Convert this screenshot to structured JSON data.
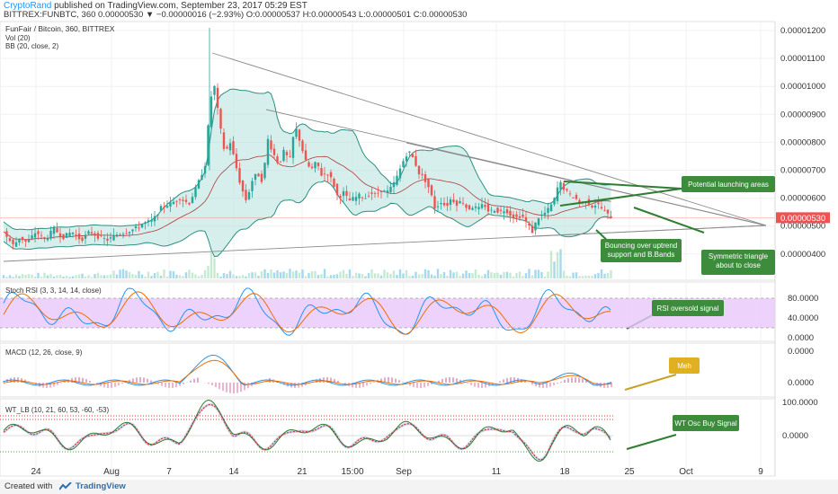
{
  "header": {
    "author": "CryptoRand",
    "published": "published on TradingView.com, September 23, 2017 05:29 EST",
    "symbol_line": "BITTREX:FUNBTC, 360  0.00000530 ▼ −0.00000016 (−2.93%)  O:0.00000537  H:0.00000543  L:0.00000501  C:0.00000530"
  },
  "chart_data": {
    "type": "candlestick",
    "title": "FunFair / Bitcoin, 360, BITTREX",
    "indicators_legend": [
      "Vol (20)",
      "BB (20, close, 2)"
    ],
    "price_axis_labels": [
      "0.00001200",
      "0.00001100",
      "0.00001000",
      "0.00000900",
      "0.00000800",
      "0.00000700",
      "0.00000600",
      "0.00000500",
      "0.00000400"
    ],
    "current_price_label": "0.00000530",
    "x_tick_labels": [
      "24",
      "Aug",
      "7",
      "14",
      "21",
      "15:00",
      "Sep",
      "11",
      "18",
      "25",
      "Oct",
      "9"
    ],
    "price_path": [
      [
        0,
        5.0
      ],
      [
        8,
        4.6
      ],
      [
        15,
        4.3
      ],
      [
        22,
        4.6
      ],
      [
        30,
        4.4
      ],
      [
        40,
        4.8
      ],
      [
        50,
        4.5
      ],
      [
        60,
        4.9
      ],
      [
        70,
        4.6
      ],
      [
        80,
        4.8
      ],
      [
        90,
        4.5
      ],
      [
        100,
        4.8
      ],
      [
        110,
        4.6
      ],
      [
        120,
        4.5
      ],
      [
        130,
        4.7
      ],
      [
        140,
        4.8
      ],
      [
        150,
        4.9
      ],
      [
        160,
        5.1
      ],
      [
        170,
        5.2
      ],
      [
        180,
        5.7
      ],
      [
        190,
        5.8
      ],
      [
        200,
        6.0
      ],
      [
        210,
        5.8
      ],
      [
        220,
        6.5
      ],
      [
        228,
        7.2
      ],
      [
        234,
        9.5
      ],
      [
        238,
        10.1
      ],
      [
        244,
        8.7
      ],
      [
        250,
        7.6
      ],
      [
        256,
        8.0
      ],
      [
        262,
        7.2
      ],
      [
        268,
        6.4
      ],
      [
        274,
        5.9
      ],
      [
        280,
        6.6
      ],
      [
        286,
        6.9
      ],
      [
        292,
        6.6
      ],
      [
        298,
        8.1
      ],
      [
        304,
        7.6
      ],
      [
        310,
        7.2
      ],
      [
        316,
        7.7
      ],
      [
        322,
        7.3
      ],
      [
        328,
        8.6
      ],
      [
        334,
        8.0
      ],
      [
        340,
        7.3
      ],
      [
        346,
        7.0
      ],
      [
        352,
        7.3
      ],
      [
        358,
        6.8
      ],
      [
        364,
        6.9
      ],
      [
        370,
        6.6
      ],
      [
        376,
        6.0
      ],
      [
        382,
        6.2
      ],
      [
        388,
        5.9
      ],
      [
        394,
        6.0
      ],
      [
        400,
        6.1
      ],
      [
        406,
        6.0
      ],
      [
        412,
        6.2
      ],
      [
        418,
        6.1
      ],
      [
        424,
        6.3
      ],
      [
        430,
        6.2
      ],
      [
        436,
        6.4
      ],
      [
        442,
        6.8
      ],
      [
        448,
        7.3
      ],
      [
        454,
        7.7
      ],
      [
        460,
        7.4
      ],
      [
        466,
        6.9
      ],
      [
        472,
        6.7
      ],
      [
        478,
        6.3
      ],
      [
        484,
        5.6
      ],
      [
        490,
        5.9
      ],
      [
        496,
        5.7
      ],
      [
        502,
        6.0
      ],
      [
        508,
        5.8
      ],
      [
        514,
        5.9
      ],
      [
        520,
        5.6
      ],
      [
        526,
        5.7
      ],
      [
        532,
        5.6
      ],
      [
        538,
        5.8
      ],
      [
        544,
        5.5
      ],
      [
        550,
        5.6
      ],
      [
        556,
        5.5
      ],
      [
        562,
        5.6
      ],
      [
        568,
        5.4
      ],
      [
        574,
        5.3
      ],
      [
        580,
        5.4
      ],
      [
        586,
        5.1
      ],
      [
        592,
        4.8
      ],
      [
        598,
        5.3
      ],
      [
        604,
        5.4
      ],
      [
        610,
        5.6
      ],
      [
        616,
        5.9
      ],
      [
        622,
        6.6
      ],
      [
        628,
        6.3
      ],
      [
        634,
        6.1
      ],
      [
        640,
        6.0
      ],
      [
        646,
        5.8
      ],
      [
        652,
        5.9
      ],
      [
        658,
        5.7
      ],
      [
        664,
        5.8
      ],
      [
        670,
        5.6
      ],
      [
        676,
        5.4
      ],
      [
        681,
        5.3
      ]
    ],
    "stoch_rsi": {
      "legend": "Stoch RSI (3, 3, 14, 14, close)",
      "axis_labels": [
        "80.0000",
        "40.0000",
        "0.0000"
      ],
      "overbought": 80,
      "oversold": 20
    },
    "macd": {
      "legend": "MACD (12, 26, close, 9)",
      "axis_labels": [
        "0.0000",
        "0.0000"
      ]
    },
    "wt": {
      "legend": "WT_LB (10, 21, 60, 53, -60, -53)",
      "axis_labels": [
        "100.0000",
        "0.0000"
      ]
    },
    "annotations": [
      "Potential launching areas",
      "Bouncing over uptrend support and B.Bands",
      "Symmetric triangle about to close",
      "RSI oversold signal",
      "Meh",
      "WT Osc Buy Signal"
    ],
    "colors": {
      "up": "#26a69a",
      "down": "#ef5350",
      "bb_fill": "#b5e2dc",
      "bb_line": "#2c8f82",
      "stoch_band": "#e9c8fb",
      "note_bg": "#3c8c3c",
      "meh_bg": "#e0b020"
    }
  },
  "footer": {
    "created": "Created with",
    "brand": "TradingView"
  }
}
